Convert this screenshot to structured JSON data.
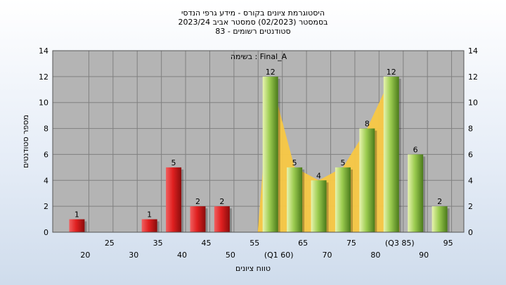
{
  "title_lines": [
    "היסטוגרמת ציונים בקורס - מידע גרפי הנדסי",
    "בסמסטר  (02/2023)  סמסטר אביב 2023/24",
    "83 - סטודנטים רשומים"
  ],
  "annotation": "בשימה : Final_A",
  "colors": {
    "plot_bg": "#b4b4b4",
    "grid": "#808080",
    "area_fill": "#f8c844",
    "bar_red": "#e02828",
    "bar_green": "#9cc850"
  },
  "chart_data": {
    "type": "bar",
    "title": "היסטוגרמת ציונים בקורס - מידע גרפי הנדסי",
    "xlabel": "טווח ציונים",
    "ylabel": "מספר סטודנטים",
    "ylim": [
      0,
      14
    ],
    "yticks": [
      0,
      2,
      4,
      6,
      8,
      10,
      12,
      14
    ],
    "grid": true,
    "x_tick_labels_lower": [
      "20",
      "30",
      "40",
      "50",
      "(Q1 60)",
      "70",
      "80",
      "90"
    ],
    "x_tick_labels_upper": [
      "25",
      "35",
      "45",
      "55",
      "65",
      "75",
      "(Q3 85)",
      "95"
    ],
    "bars": [
      {
        "x": 20,
        "value": 1,
        "label": "1",
        "group": "fail"
      },
      {
        "x": 35,
        "value": 1,
        "label": "1",
        "group": "fail"
      },
      {
        "x": 40,
        "value": 5,
        "label": "5",
        "group": "fail"
      },
      {
        "x": 45,
        "value": 2,
        "label": "2",
        "group": "fail"
      },
      {
        "x": 50,
        "value": 2,
        "label": "2",
        "group": "fail"
      },
      {
        "x": 60,
        "value": 12,
        "label": "12",
        "group": "pass"
      },
      {
        "x": 65,
        "value": 5,
        "label": "5",
        "group": "pass"
      },
      {
        "x": 70,
        "value": 4,
        "label": "4",
        "group": "pass"
      },
      {
        "x": 75,
        "value": 5,
        "label": "5",
        "group": "pass"
      },
      {
        "x": 80,
        "value": 8,
        "label": "8",
        "group": "pass"
      },
      {
        "x": 85,
        "value": 12,
        "label": "12",
        "group": "pass"
      },
      {
        "x": 90,
        "value": 6,
        "label": "6",
        "group": "pass"
      },
      {
        "x": 95,
        "value": 2,
        "label": "2",
        "group": "pass"
      }
    ],
    "interquartile_area": {
      "x": [
        60,
        65,
        70,
        75,
        80,
        85
      ],
      "y": [
        12,
        5,
        4,
        5,
        8,
        12
      ]
    }
  }
}
